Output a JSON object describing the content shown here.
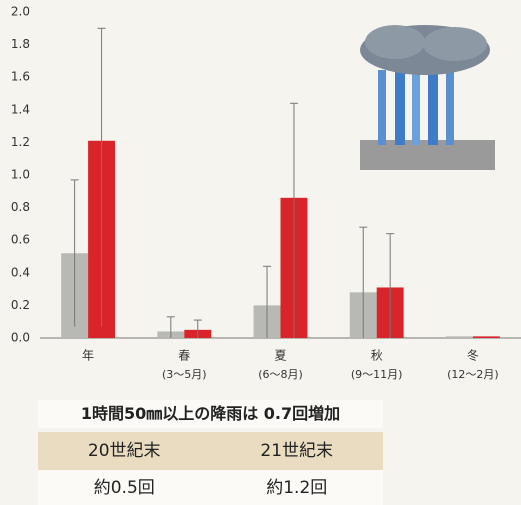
{
  "chart_data": {
    "type": "bar",
    "categories": [
      "年",
      "春",
      "夏",
      "秋",
      "冬"
    ],
    "subcategories": [
      null,
      "(3〜5月)",
      "(6〜8月)",
      "(9〜11月)",
      "(12〜2月)"
    ],
    "series": [
      {
        "color": "#b8b9b4",
        "values": [
          0.52,
          0.04,
          0.2,
          0.28,
          0.01
        ],
        "lower": [
          0.07,
          0.0,
          0.0,
          0.0,
          null
        ],
        "upper": [
          0.97,
          0.13,
          0.44,
          0.68,
          null
        ]
      },
      {
        "color": "#d8242a",
        "values": [
          1.21,
          0.05,
          0.86,
          0.31,
          0.01
        ],
        "lower": [
          0.07,
          0.0,
          0.0,
          0.0,
          null
        ],
        "upper": [
          1.9,
          0.11,
          1.44,
          0.64,
          null
        ]
      }
    ],
    "ylim": [
      0,
      2
    ],
    "yticks": [
      {
        "value": 0,
        "label": "0.0"
      },
      0.2,
      0.4,
      0.6,
      0.8,
      {
        "value": 1,
        "label": "1.0"
      },
      1.2,
      1.4,
      1.6,
      1.8,
      {
        "value": 2,
        "label": "2.0"
      }
    ],
    "grid": false
  },
  "table": {
    "title": "1時間50㎜以上の降雨は 0.7回増加",
    "header": [
      "20世紀末",
      "21世紀末"
    ],
    "rows": [
      [
        "約0.5回",
        "約1.2回"
      ]
    ]
  }
}
